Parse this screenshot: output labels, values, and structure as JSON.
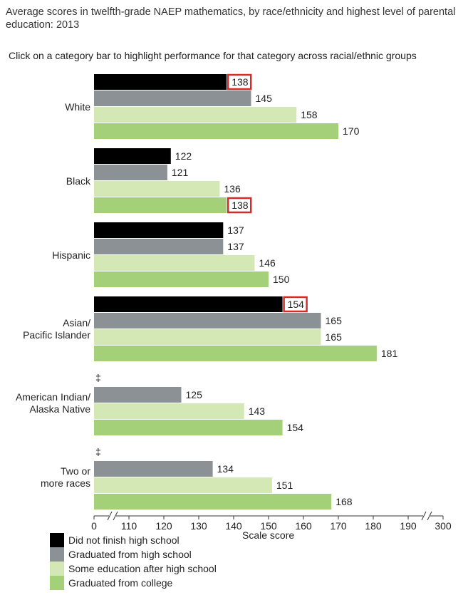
{
  "title": "Average scores in twelfth-grade NAEP mathematics, by race/ethnicity and highest level of parental education: 2013",
  "instruction": "Click on a category bar to highlight performance for that category across racial/ethnic groups",
  "chart_data": {
    "type": "bar",
    "orientation": "horizontal",
    "xlabel": "Scale score",
    "x_ticks": [
      "0",
      "110",
      "120",
      "130",
      "140",
      "150",
      "160",
      "170",
      "180",
      "190",
      "300"
    ],
    "axis_break": true,
    "xlim_display": [
      100,
      200
    ],
    "series": [
      {
        "name": "Did not finish high school",
        "color": "#000000"
      },
      {
        "name": "Graduated from high school",
        "color": "#8c9195"
      },
      {
        "name": "Some education after high school",
        "color": "#d3e8b5"
      },
      {
        "name": "Graduated from college",
        "color": "#a3d078"
      }
    ],
    "groups": [
      {
        "label_lines": [
          "White"
        ],
        "note": "",
        "values": [
          138,
          145,
          158,
          170
        ],
        "highlight": [
          true,
          false,
          false,
          false
        ]
      },
      {
        "label_lines": [
          "Black"
        ],
        "note": "",
        "values": [
          122,
          121,
          136,
          138
        ],
        "highlight": [
          false,
          false,
          false,
          true
        ]
      },
      {
        "label_lines": [
          "Hispanic"
        ],
        "note": "",
        "values": [
          137,
          137,
          146,
          150
        ],
        "highlight": [
          false,
          false,
          false,
          false
        ]
      },
      {
        "label_lines": [
          "Asian/",
          "Pacific Islander"
        ],
        "note": "",
        "values": [
          154,
          165,
          165,
          181
        ],
        "highlight": [
          true,
          false,
          false,
          false
        ]
      },
      {
        "label_lines": [
          "American Indian/",
          "Alaska Native"
        ],
        "note": "‡",
        "values": [
          null,
          125,
          143,
          154
        ],
        "highlight": [
          false,
          false,
          false,
          false
        ]
      },
      {
        "label_lines": [
          "Two or",
          "more races"
        ],
        "note": "‡",
        "values": [
          null,
          134,
          151,
          168
        ],
        "highlight": [
          false,
          false,
          false,
          false
        ]
      }
    ],
    "highlight_color": "#d62b2b"
  },
  "legend": {
    "items": [
      {
        "label": "Did not finish high school",
        "color": "#000000"
      },
      {
        "label": "Graduated from high school",
        "color": "#8c9195"
      },
      {
        "label": "Some education after high school",
        "color": "#d3e8b5"
      },
      {
        "label": "Graduated from college",
        "color": "#a3d078"
      }
    ]
  }
}
